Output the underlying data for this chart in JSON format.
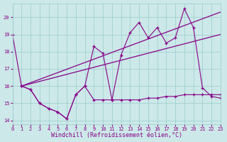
{
  "bg_color": "#cce8e8",
  "line_color": "#880088",
  "grid_color": "#99cccc",
  "xlabel": "Windchill (Refroidissement éolien,°C)",
  "xlim": [
    0,
    23
  ],
  "ylim": [
    13.8,
    20.8
  ],
  "yticks": [
    14,
    15,
    16,
    17,
    18,
    19,
    20
  ],
  "xticks": [
    0,
    1,
    2,
    3,
    4,
    5,
    6,
    7,
    8,
    9,
    10,
    11,
    12,
    13,
    14,
    15,
    16,
    17,
    18,
    19,
    20,
    21,
    22,
    23
  ],
  "line1_x": [
    0,
    1,
    2,
    3,
    4,
    5,
    6,
    7,
    8,
    9,
    10,
    11,
    12,
    13,
    14,
    15,
    16,
    17,
    18,
    19,
    20,
    21,
    22,
    23
  ],
  "line1_y": [
    19.0,
    16.0,
    15.8,
    15.0,
    14.7,
    14.5,
    14.1,
    15.5,
    16.0,
    18.3,
    17.9,
    15.2,
    17.8,
    19.1,
    19.7,
    18.8,
    19.4,
    18.5,
    18.8,
    20.5,
    19.4,
    15.9,
    15.4,
    15.3
  ],
  "line2_x": [
    1,
    2,
    3,
    4,
    5,
    6,
    7,
    8,
    9,
    10,
    11,
    12,
    13,
    14,
    15,
    16,
    17,
    18,
    19,
    20,
    21,
    22,
    23
  ],
  "line2_y": [
    16.0,
    15.8,
    15.0,
    14.7,
    14.5,
    14.1,
    15.5,
    16.0,
    15.2,
    15.2,
    15.2,
    15.2,
    15.2,
    15.2,
    15.3,
    15.3,
    15.4,
    15.4,
    15.5,
    15.5,
    15.5,
    15.5,
    15.5
  ],
  "trend1_x": [
    1,
    23
  ],
  "trend1_y": [
    16.0,
    20.3
  ],
  "trend2_x": [
    1,
    23
  ],
  "trend2_y": [
    16.0,
    19.0
  ],
  "tick_fontsize": 5,
  "label_fontsize": 6
}
